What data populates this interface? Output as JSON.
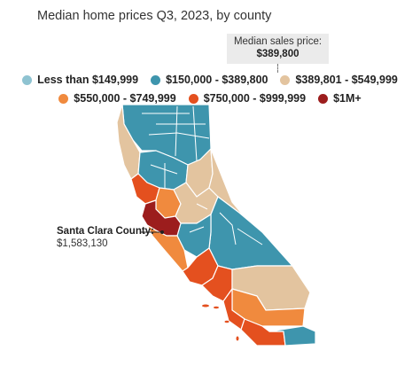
{
  "title": "Median home prices Q3, 2023, by county",
  "median": {
    "label": "Median sales price:",
    "value": "$389,800"
  },
  "legend": [
    {
      "label": "Less than $149,999",
      "color": "#8ec3d1"
    },
    {
      "label": "$150,000 - $389,800",
      "color": "#3e95ad"
    },
    {
      "label": "$389,801 - $549,999",
      "color": "#e3c49f"
    },
    {
      "label": "$550,000 - $749,999",
      "color": "#f08a3e"
    },
    {
      "label": "$750,000 - $999,999",
      "color": "#e4501f"
    },
    {
      "label": "$1M+",
      "color": "#9c1d1d"
    }
  ],
  "callout": {
    "county": "Santa Clara County:",
    "value": "$1,583,130"
  }
}
